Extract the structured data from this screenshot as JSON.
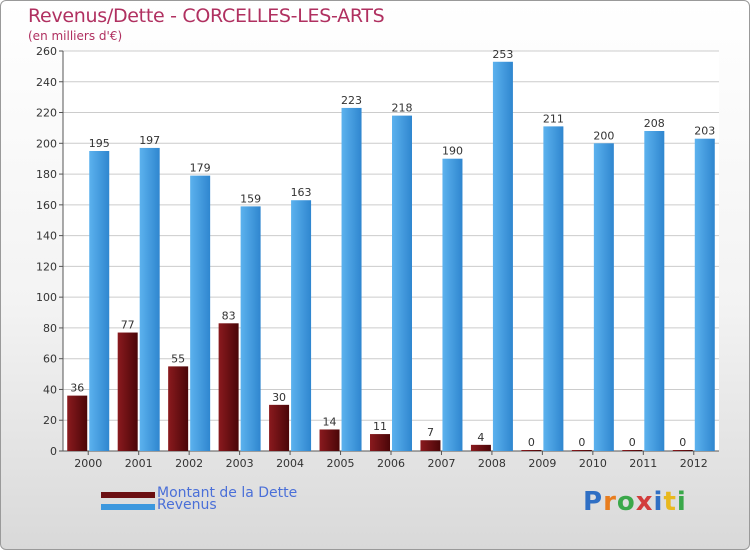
{
  "chart_data": {
    "type": "bar",
    "title": "Revenus/Dette - CORCELLES-LES-ARTS",
    "subtitle": "(en milliers d'€)",
    "xlabel": "",
    "ylabel": "",
    "categories": [
      "2000",
      "2001",
      "2002",
      "2003",
      "2004",
      "2005",
      "2006",
      "2007",
      "2008",
      "2009",
      "2010",
      "2011",
      "2012"
    ],
    "series": [
      {
        "name": "Montant de la Dette",
        "color": "#6b0f12",
        "values": [
          36,
          77,
          55,
          83,
          30,
          14,
          11,
          7,
          4,
          0,
          0,
          0,
          0
        ]
      },
      {
        "name": "Revenus",
        "color": "#3d98de",
        "values": [
          195,
          197,
          179,
          159,
          163,
          223,
          218,
          190,
          253,
          211,
          200,
          208,
          203
        ]
      }
    ],
    "ylim": [
      0,
      260
    ],
    "yticks": [
      0,
      20,
      40,
      60,
      80,
      100,
      120,
      140,
      160,
      180,
      200,
      220,
      240,
      260
    ],
    "grid": true,
    "legend_position": "bottom-left"
  },
  "logo": {
    "letters": [
      "P",
      "r",
      "o",
      "x",
      "i",
      "t",
      "i"
    ]
  },
  "colors": {
    "title": "#b03060",
    "axis": "#555555",
    "grid": "#cccccc"
  }
}
